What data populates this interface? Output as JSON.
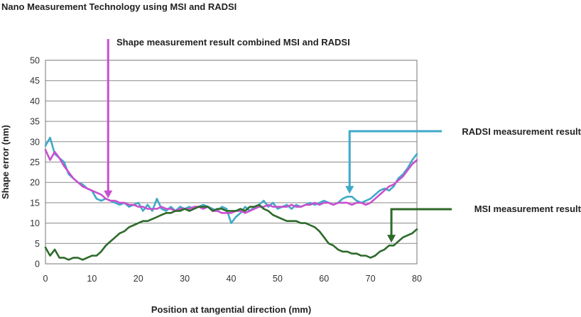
{
  "chart_data": {
    "type": "line",
    "title": "Nano Measurement Technology using MSI and RADSI",
    "xlabel": "Position at tangential direction (mm)",
    "ylabel": "Shape error (nm)",
    "xlim": [
      0,
      80
    ],
    "ylim": [
      0,
      50
    ],
    "xticks": [
      0,
      10,
      20,
      30,
      40,
      50,
      60,
      70,
      80
    ],
    "yticks": [
      0,
      5,
      10,
      15,
      20,
      25,
      30,
      35,
      40,
      45,
      50
    ],
    "grid": "horizontal",
    "series": [
      {
        "name": "RADSI measurement result",
        "color": "#3fa9c9",
        "x": [
          0,
          1,
          2,
          3,
          4,
          5,
          6,
          7,
          8,
          9,
          10,
          11,
          12,
          13,
          14,
          15,
          16,
          17,
          18,
          19,
          20,
          21,
          22,
          23,
          24,
          25,
          26,
          27,
          28,
          29,
          30,
          31,
          32,
          33,
          34,
          35,
          36,
          37,
          38,
          39,
          40,
          41,
          42,
          43,
          44,
          45,
          46,
          47,
          48,
          49,
          50,
          51,
          52,
          53,
          54,
          55,
          56,
          57,
          58,
          59,
          60,
          61,
          62,
          63,
          64,
          65,
          66,
          67,
          68,
          69,
          70,
          71,
          72,
          73,
          74,
          75,
          76,
          77,
          78,
          79,
          80
        ],
        "y": [
          29,
          31,
          27,
          26,
          25,
          22,
          21,
          20,
          19.5,
          18.5,
          18,
          16,
          15.5,
          16,
          15.5,
          15,
          14.5,
          15,
          14,
          14.5,
          15,
          13,
          14.5,
          13,
          16,
          13.5,
          13,
          14,
          13,
          14,
          13.5,
          14,
          13.5,
          14,
          14.5,
          14,
          13.5,
          13,
          14,
          13.5,
          10,
          11.5,
          12.5,
          14,
          13,
          14,
          14.5,
          15.5,
          14,
          15,
          13.5,
          14,
          14.5,
          13.5,
          14.5,
          14,
          14.5,
          15,
          14.5,
          15,
          15.5,
          15,
          14.5,
          15,
          16,
          16.5,
          16.5,
          15.5,
          15,
          15.5,
          16,
          17,
          18,
          18.5,
          18,
          19,
          21,
          22,
          23.5,
          25.5,
          27
        ]
      },
      {
        "name": "Shape measurement result combined MSI and RADSI",
        "color": "#c94fcf",
        "x": [
          0,
          1,
          2,
          3,
          4,
          5,
          6,
          7,
          8,
          9,
          10,
          11,
          12,
          13,
          14,
          15,
          16,
          17,
          18,
          19,
          20,
          21,
          22,
          23,
          24,
          25,
          26,
          27,
          28,
          29,
          30,
          31,
          32,
          33,
          34,
          35,
          36,
          37,
          38,
          39,
          40,
          41,
          42,
          43,
          44,
          45,
          46,
          47,
          48,
          49,
          50,
          51,
          52,
          53,
          54,
          55,
          56,
          57,
          58,
          59,
          60,
          61,
          62,
          63,
          64,
          65,
          66,
          67,
          68,
          69,
          70,
          71,
          72,
          73,
          74,
          75,
          76,
          77,
          78,
          79,
          80
        ],
        "y": [
          28,
          25.5,
          27.5,
          26,
          24,
          22.5,
          21,
          20,
          19,
          18.5,
          18,
          17.5,
          17,
          16,
          15.5,
          15.5,
          15,
          15,
          14.5,
          14.5,
          14,
          14,
          13.5,
          13.5,
          13.5,
          14,
          13.5,
          13.5,
          13,
          13.5,
          13.5,
          13.5,
          14,
          14,
          13.5,
          14,
          13,
          13,
          12.5,
          12.5,
          12.5,
          13,
          13,
          12.5,
          13,
          13.5,
          14,
          14,
          14.5,
          14,
          14,
          14,
          14,
          14.5,
          14,
          14,
          14.5,
          14.5,
          15,
          14.5,
          15,
          15,
          14.5,
          15,
          15,
          15,
          14.5,
          15,
          15,
          14.5,
          15,
          16,
          17,
          18,
          19,
          19.5,
          20.5,
          21.5,
          23,
          24.5,
          25.5
        ]
      },
      {
        "name": "MSI measurement result",
        "color": "#2d6a2a",
        "x": [
          0,
          1,
          2,
          3,
          4,
          5,
          6,
          7,
          8,
          9,
          10,
          11,
          12,
          13,
          14,
          15,
          16,
          17,
          18,
          19,
          20,
          21,
          22,
          23,
          24,
          25,
          26,
          27,
          28,
          29,
          30,
          31,
          32,
          33,
          34,
          35,
          36,
          37,
          38,
          39,
          40,
          41,
          42,
          43,
          44,
          45,
          46,
          47,
          48,
          49,
          50,
          51,
          52,
          53,
          54,
          55,
          56,
          57,
          58,
          59,
          60,
          61,
          62,
          63,
          64,
          65,
          66,
          67,
          68,
          69,
          70,
          71,
          72,
          73,
          74,
          75,
          76,
          77,
          78,
          79,
          80
        ],
        "y": [
          4,
          2,
          3.5,
          1.5,
          1.5,
          1,
          1.5,
          1.5,
          1,
          1.5,
          2,
          2,
          3,
          4.5,
          5.5,
          6.5,
          7.5,
          8,
          9,
          9.5,
          10,
          10.5,
          10.5,
          11,
          11.5,
          12,
          12.5,
          12.5,
          13,
          13,
          13.5,
          13,
          13.5,
          14,
          14,
          14,
          13,
          13.5,
          13.5,
          13,
          13,
          13,
          13.5,
          13,
          14,
          14,
          14.5,
          13.5,
          13,
          12,
          11.5,
          11,
          10.5,
          10.5,
          10.5,
          10,
          10,
          9.5,
          9,
          8,
          6.5,
          5,
          4.5,
          3.5,
          3,
          3,
          2.5,
          2.5,
          2,
          2,
          1.5,
          2,
          3,
          3.5,
          4.5,
          4.5,
          5.5,
          6.5,
          7,
          7.5,
          8.5
        ]
      }
    ],
    "annotations": [
      {
        "text": "Shape measurement result combined MSI and RADSI",
        "series": 1,
        "at_x": 13.5
      },
      {
        "text": "RADSI measurement result",
        "series": 0,
        "at_x": 65.5
      },
      {
        "text": "MSI measurement result",
        "series": 2,
        "at_x": 74.5
      }
    ]
  }
}
